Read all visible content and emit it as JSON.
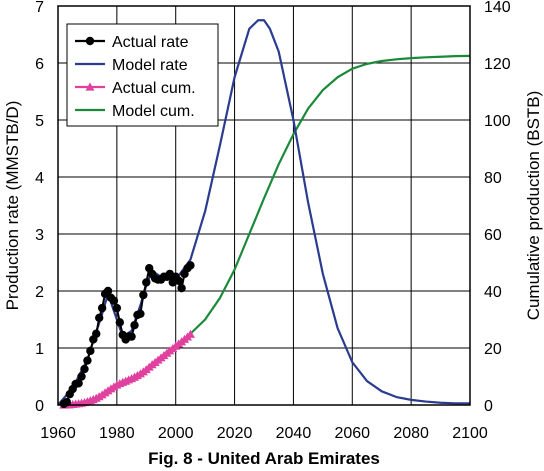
{
  "chart_data": {
    "type": "line",
    "caption": "Fig. 8 - United Arab Emirates",
    "xlabel": "",
    "ylabel": "Production rate (MMSTB/D)",
    "y2label": "Cumulative production (BSTB)",
    "xlim": [
      1960,
      2100
    ],
    "ylim": [
      0,
      7
    ],
    "y2lim": [
      0,
      140
    ],
    "xticks": [
      1960,
      1980,
      2000,
      2020,
      2040,
      2060,
      2080,
      2100
    ],
    "yticks": [
      0,
      1,
      2,
      3,
      4,
      5,
      6,
      7
    ],
    "y2ticks": [
      0,
      20,
      40,
      60,
      80,
      100,
      120,
      140
    ],
    "grid": true,
    "legend_position": "top-left",
    "series": [
      {
        "name": "Actual rate",
        "axis": "left",
        "color": "#000000",
        "marker": "circle",
        "x": [
          1962,
          1963,
          1964,
          1965,
          1966,
          1967,
          1968,
          1969,
          1970,
          1971,
          1972,
          1973,
          1974,
          1975,
          1976,
          1977,
          1978,
          1979,
          1980,
          1981,
          1982,
          1983,
          1984,
          1985,
          1986,
          1987,
          1988,
          1989,
          1990,
          1991,
          1992,
          1993,
          1994,
          1995,
          1996,
          1997,
          1998,
          1999,
          2000,
          2001,
          2002,
          2003,
          2004,
          2005
        ],
        "y": [
          0.02,
          0.05,
          0.19,
          0.28,
          0.37,
          0.38,
          0.5,
          0.63,
          0.78,
          0.95,
          1.15,
          1.25,
          1.53,
          1.7,
          1.95,
          2.0,
          1.88,
          1.83,
          1.7,
          1.45,
          1.23,
          1.15,
          1.2,
          1.2,
          1.4,
          1.58,
          1.6,
          1.93,
          2.15,
          2.4,
          2.3,
          2.22,
          2.2,
          2.2,
          2.25,
          2.25,
          2.3,
          2.15,
          2.25,
          2.18,
          2.05,
          2.3,
          2.4,
          2.45
        ]
      },
      {
        "name": "Model rate",
        "axis": "left",
        "color": "#2b3b8f",
        "marker": "none",
        "x": [
          1960,
          1965,
          1970,
          1975,
          1977,
          1980,
          1982,
          1985,
          1988,
          1990,
          1992,
          1995,
          2000,
          2005,
          2010,
          2015,
          2020,
          2025,
          2028,
          2030,
          2032,
          2035,
          2040,
          2045,
          2050,
          2055,
          2060,
          2065,
          2070,
          2075,
          2080,
          2085,
          2090,
          2095,
          2100
        ],
        "y": [
          0.0,
          0.3,
          0.8,
          1.6,
          1.95,
          1.5,
          1.2,
          1.3,
          1.75,
          2.1,
          2.35,
          2.25,
          2.2,
          2.55,
          3.4,
          4.55,
          5.75,
          6.6,
          6.75,
          6.75,
          6.6,
          6.2,
          5.0,
          3.55,
          2.3,
          1.35,
          0.75,
          0.42,
          0.24,
          0.14,
          0.09,
          0.06,
          0.04,
          0.03,
          0.03
        ]
      },
      {
        "name": "Actual cum.",
        "axis": "right",
        "color": "#e0409e",
        "marker": "triangle",
        "x": [
          1962,
          1963,
          1964,
          1965,
          1966,
          1967,
          1968,
          1969,
          1970,
          1971,
          1972,
          1973,
          1974,
          1975,
          1976,
          1977,
          1978,
          1979,
          1980,
          1981,
          1982,
          1983,
          1984,
          1985,
          1986,
          1987,
          1988,
          1989,
          1990,
          1991,
          1992,
          1993,
          1994,
          1995,
          1996,
          1997,
          1998,
          1999,
          2000,
          2001,
          2002,
          2003,
          2004,
          2005
        ],
        "y": [
          0.0,
          0.02,
          0.09,
          0.2,
          0.33,
          0.47,
          0.65,
          0.88,
          1.17,
          1.52,
          1.93,
          2.39,
          2.95,
          3.57,
          4.28,
          5.01,
          5.7,
          6.37,
          6.99,
          7.52,
          7.97,
          8.39,
          8.83,
          9.27,
          9.78,
          10.36,
          10.94,
          11.65,
          12.43,
          13.31,
          14.15,
          14.96,
          15.76,
          16.56,
          17.38,
          18.2,
          19.04,
          19.83,
          20.65,
          21.45,
          22.2,
          23.04,
          23.91,
          24.81
        ]
      },
      {
        "name": "Model cum.",
        "axis": "right",
        "color": "#1a8a3a",
        "marker": "none",
        "x": [
          2005,
          2010,
          2015,
          2020,
          2025,
          2030,
          2035,
          2040,
          2045,
          2050,
          2055,
          2060,
          2065,
          2070,
          2075,
          2080,
          2085,
          2090,
          2095,
          2100
        ],
        "y": [
          25,
          30,
          37.5,
          47.5,
          60,
          72.5,
          84.5,
          95,
          104,
          110.5,
          115,
          118,
          119.7,
          120.7,
          121.3,
          121.7,
          122,
          122.2,
          122.4,
          122.5
        ]
      }
    ]
  }
}
